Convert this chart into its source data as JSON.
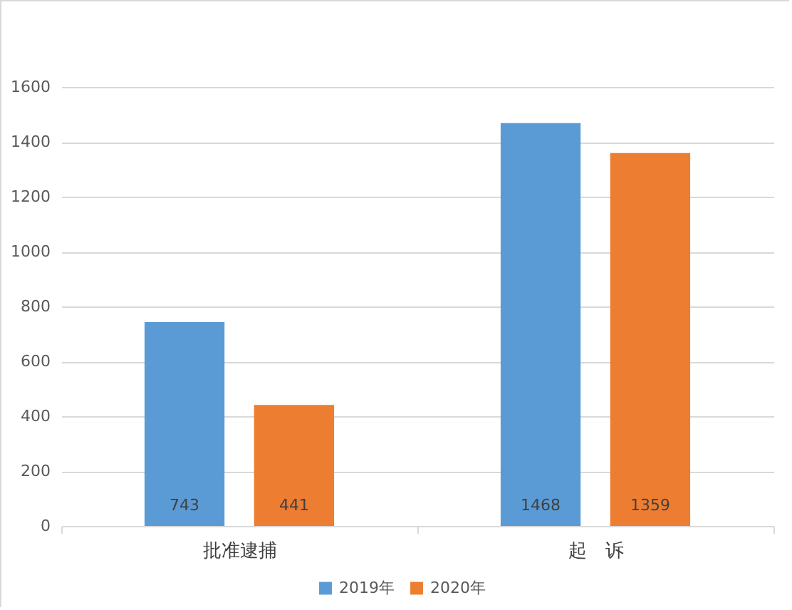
{
  "chart_data": {
    "type": "bar",
    "categories": [
      "批准逮捕",
      "起　诉"
    ],
    "series": [
      {
        "name": "2019年",
        "color": "#5b9bd5",
        "values": [
          743,
          1468
        ]
      },
      {
        "name": "2020年",
        "color": "#ed7d31",
        "values": [
          441,
          1359
        ]
      }
    ],
    "ylim": [
      0,
      1600
    ],
    "yticks": [
      0,
      200,
      400,
      600,
      800,
      1000,
      1200,
      1400,
      1600
    ],
    "grid": "y",
    "legend": "bottom",
    "data_labels": true
  }
}
